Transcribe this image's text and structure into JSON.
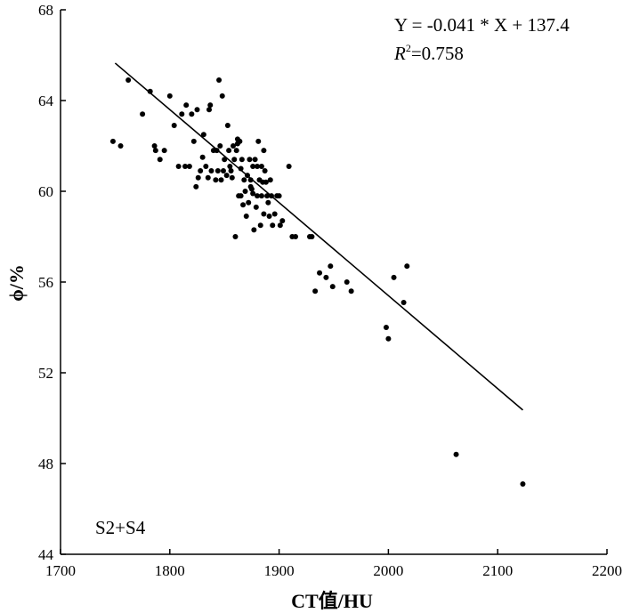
{
  "chart_data": {
    "type": "scatter",
    "xlabel": "CT值/HU",
    "ylabel": "ϕ/%",
    "xlim": [
      1700,
      2200
    ],
    "ylim": [
      44,
      68
    ],
    "xticks": [
      1700,
      1800,
      1900,
      2000,
      2100,
      2200
    ],
    "yticks": [
      44,
      48,
      52,
      56,
      60,
      64,
      68
    ],
    "grid": false,
    "annotations": {
      "equation": "Y = -0.041 * X + 137.4",
      "r2_label": "R",
      "r2_sup": "2",
      "r2_value": "=0.758",
      "sample": "S2+S4"
    },
    "trendline": {
      "slope": -0.041,
      "intercept": 137.4,
      "x_range": [
        1750,
        2123
      ]
    },
    "points": [
      [
        1748,
        62.2
      ],
      [
        1755,
        62.0
      ],
      [
        1762,
        64.9
      ],
      [
        1775,
        63.4
      ],
      [
        1782,
        64.4
      ],
      [
        1786,
        62.0
      ],
      [
        1787,
        61.8
      ],
      [
        1791,
        61.4
      ],
      [
        1795,
        61.8
      ],
      [
        1800,
        64.2
      ],
      [
        1804,
        62.9
      ],
      [
        1808,
        61.1
      ],
      [
        1811,
        63.4
      ],
      [
        1814,
        61.1
      ],
      [
        1815,
        63.8
      ],
      [
        1818,
        61.1
      ],
      [
        1820,
        63.4
      ],
      [
        1822,
        62.2
      ],
      [
        1824,
        60.2
      ],
      [
        1825,
        63.6
      ],
      [
        1826,
        60.6
      ],
      [
        1828,
        60.9
      ],
      [
        1830,
        61.5
      ],
      [
        1831,
        62.5
      ],
      [
        1833,
        61.1
      ],
      [
        1835,
        60.6
      ],
      [
        1836,
        63.6
      ],
      [
        1837,
        63.8
      ],
      [
        1838,
        60.9
      ],
      [
        1840,
        61.8
      ],
      [
        1842,
        60.5
      ],
      [
        1843,
        61.8
      ],
      [
        1844,
        60.9
      ],
      [
        1845,
        64.9
      ],
      [
        1846,
        62.0
      ],
      [
        1847,
        60.5
      ],
      [
        1848,
        64.2
      ],
      [
        1849,
        60.9
      ],
      [
        1850,
        61.4
      ],
      [
        1852,
        60.7
      ],
      [
        1853,
        62.9
      ],
      [
        1854,
        61.8
      ],
      [
        1855,
        61.1
      ],
      [
        1856,
        60.9
      ],
      [
        1857,
        60.6
      ],
      [
        1858,
        62.0
      ],
      [
        1859,
        61.4
      ],
      [
        1860,
        58.0
      ],
      [
        1861,
        61.8
      ],
      [
        1862,
        62.3
      ],
      [
        1862,
        62.1
      ],
      [
        1863,
        59.8
      ],
      [
        1864,
        62.2
      ],
      [
        1865,
        61.0
      ],
      [
        1865,
        59.8
      ],
      [
        1866,
        61.4
      ],
      [
        1867,
        59.4
      ],
      [
        1868,
        60.5
      ],
      [
        1869,
        60.0
      ],
      [
        1870,
        58.9
      ],
      [
        1871,
        60.7
      ],
      [
        1872,
        59.5
      ],
      [
        1873,
        61.4
      ],
      [
        1874,
        60.5
      ],
      [
        1874,
        60.2
      ],
      [
        1875,
        60.1
      ],
      [
        1876,
        61.1
      ],
      [
        1876,
        59.9
      ],
      [
        1877,
        58.3
      ],
      [
        1878,
        61.4
      ],
      [
        1879,
        59.3
      ],
      [
        1880,
        61.1
      ],
      [
        1880,
        59.8
      ],
      [
        1881,
        62.2
      ],
      [
        1882,
        60.5
      ],
      [
        1883,
        58.5
      ],
      [
        1884,
        61.1
      ],
      [
        1884,
        59.8
      ],
      [
        1885,
        60.4
      ],
      [
        1886,
        61.8
      ],
      [
        1886,
        59.0
      ],
      [
        1887,
        60.9
      ],
      [
        1888,
        60.4
      ],
      [
        1889,
        59.8
      ],
      [
        1890,
        59.5
      ],
      [
        1891,
        58.9
      ],
      [
        1892,
        60.5
      ],
      [
        1893,
        59.8
      ],
      [
        1894,
        58.5
      ],
      [
        1896,
        59.0
      ],
      [
        1898,
        59.8
      ],
      [
        1900,
        59.8
      ],
      [
        1901,
        58.5
      ],
      [
        1903,
        58.7
      ],
      [
        1909,
        61.1
      ],
      [
        1912,
        58.0
      ],
      [
        1915,
        58.0
      ],
      [
        1928,
        58.0
      ],
      [
        1930,
        58.0
      ],
      [
        1933,
        55.6
      ],
      [
        1937,
        56.4
      ],
      [
        1943,
        56.2
      ],
      [
        1947,
        56.7
      ],
      [
        1949,
        55.8
      ],
      [
        1962,
        56.0
      ],
      [
        1966,
        55.6
      ],
      [
        1998,
        54.0
      ],
      [
        2000,
        53.5
      ],
      [
        2005,
        56.2
      ],
      [
        2014,
        55.1
      ],
      [
        2017,
        56.7
      ],
      [
        2062,
        48.4
      ],
      [
        2123,
        47.1
      ]
    ]
  }
}
